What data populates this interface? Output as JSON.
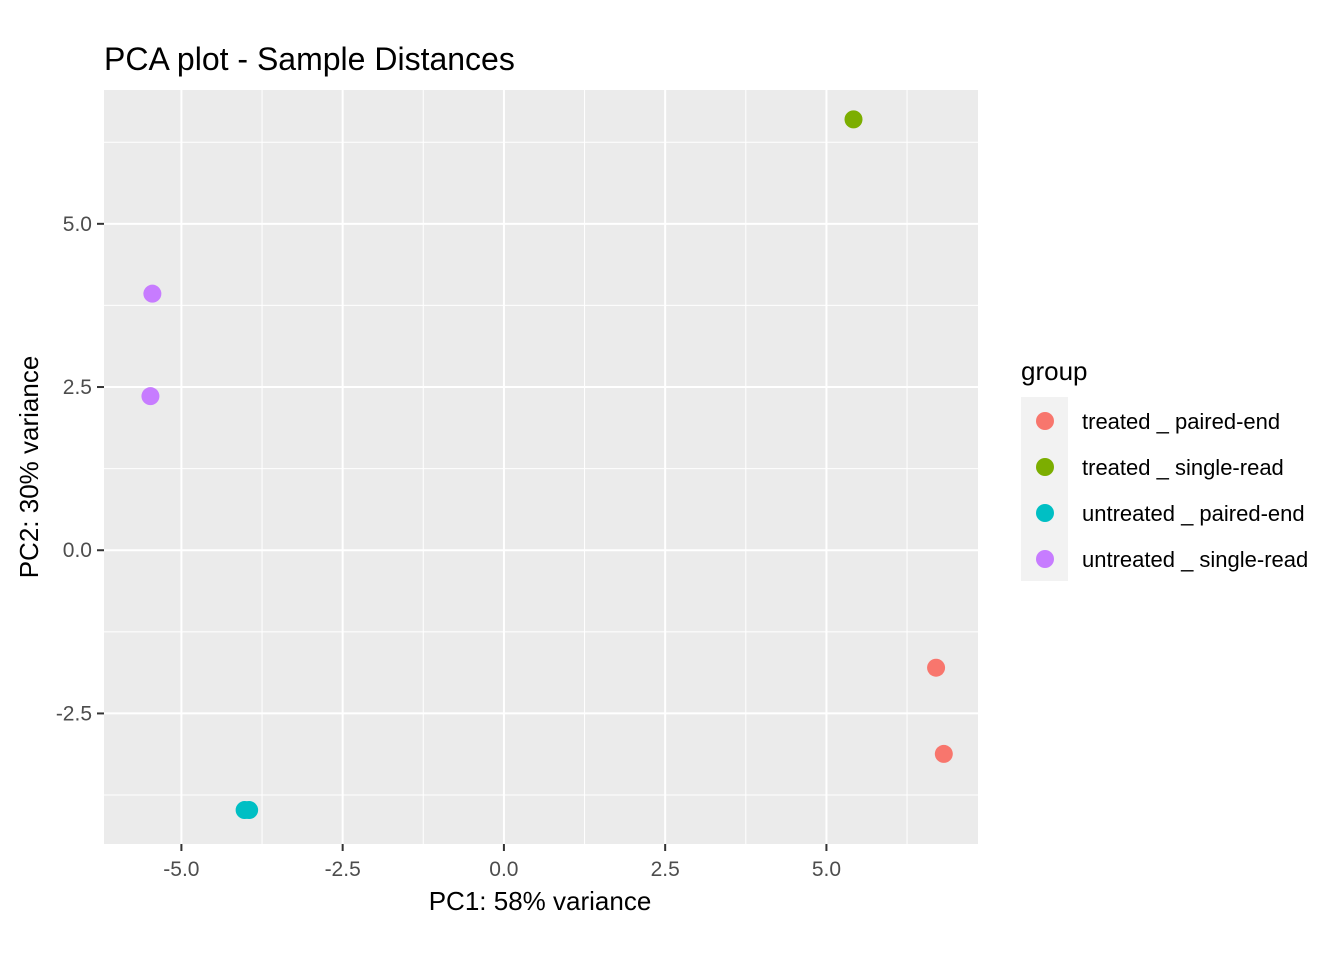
{
  "chart_data": {
    "type": "scatter",
    "title": "PCA plot - Sample Distances",
    "xlabel": "PC1: 58% variance",
    "ylabel": "PC2: 30% variance",
    "xlim": [
      -6.2,
      7.35
    ],
    "ylim": [
      -4.5,
      7.05
    ],
    "x_ticks": [
      -5.0,
      -2.5,
      0.0,
      2.5,
      5.0
    ],
    "x_tick_labels": [
      "-5.0",
      "-2.5",
      "0.0",
      "2.5",
      "5.0"
    ],
    "y_ticks": [
      -2.5,
      0.0,
      2.5,
      5.0
    ],
    "y_tick_labels": [
      "-2.5",
      "0.0",
      "2.5",
      "5.0"
    ],
    "grid": true,
    "legend": {
      "title": "group",
      "placement": "right"
    },
    "series": [
      {
        "name": "treated _ paired-end",
        "color": "#F8766D",
        "points": [
          {
            "x": 6.7,
            "y": -1.8
          },
          {
            "x": 6.82,
            "y": -3.12
          }
        ]
      },
      {
        "name": "treated _ single-read",
        "color": "#7CAE00",
        "points": [
          {
            "x": 5.42,
            "y": 6.6
          }
        ]
      },
      {
        "name": "untreated _ paired-end",
        "color": "#00BFC4",
        "points": [
          {
            "x": -4.02,
            "y": -3.98
          },
          {
            "x": -3.95,
            "y": -3.98
          }
        ]
      },
      {
        "name": "untreated _ single-read",
        "color": "#C77CFF",
        "points": [
          {
            "x": -5.45,
            "y": 3.93
          },
          {
            "x": -5.48,
            "y": 2.36
          }
        ]
      }
    ]
  }
}
